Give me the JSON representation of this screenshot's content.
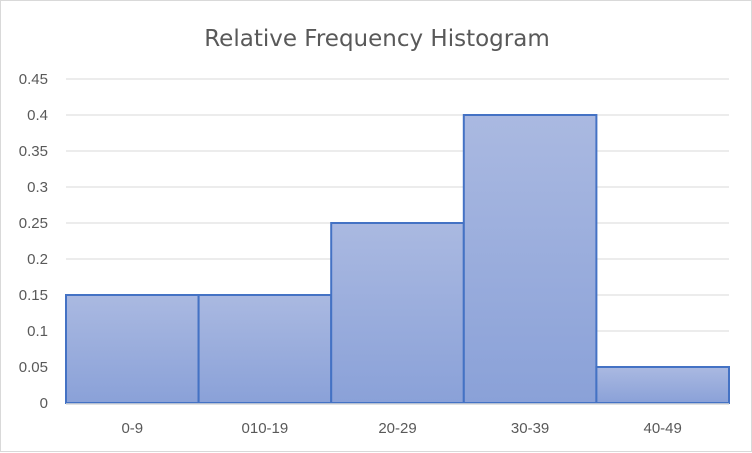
{
  "chart_data": {
    "type": "bar",
    "title": "Relative Frequency Histogram",
    "categories": [
      "0-9",
      "010-19",
      "20-29",
      "30-39",
      "40-49"
    ],
    "values": [
      0.15,
      0.15,
      0.25,
      0.4,
      0.05
    ],
    "xlabel": "",
    "ylabel": "",
    "ylim": [
      0,
      0.45
    ],
    "yticks": [
      "0",
      "0.05",
      "0.1",
      "0.15",
      "0.2",
      "0.25",
      "0.3",
      "0.35",
      "0.4",
      "0.45"
    ],
    "grid": true,
    "legend": "none",
    "colors": {
      "bar_top": "#aab9e1",
      "bar_bottom": "#8aa1d8",
      "bar_stroke": "#4472c4",
      "grid": "#d9d9d9",
      "text": "#595959"
    }
  }
}
